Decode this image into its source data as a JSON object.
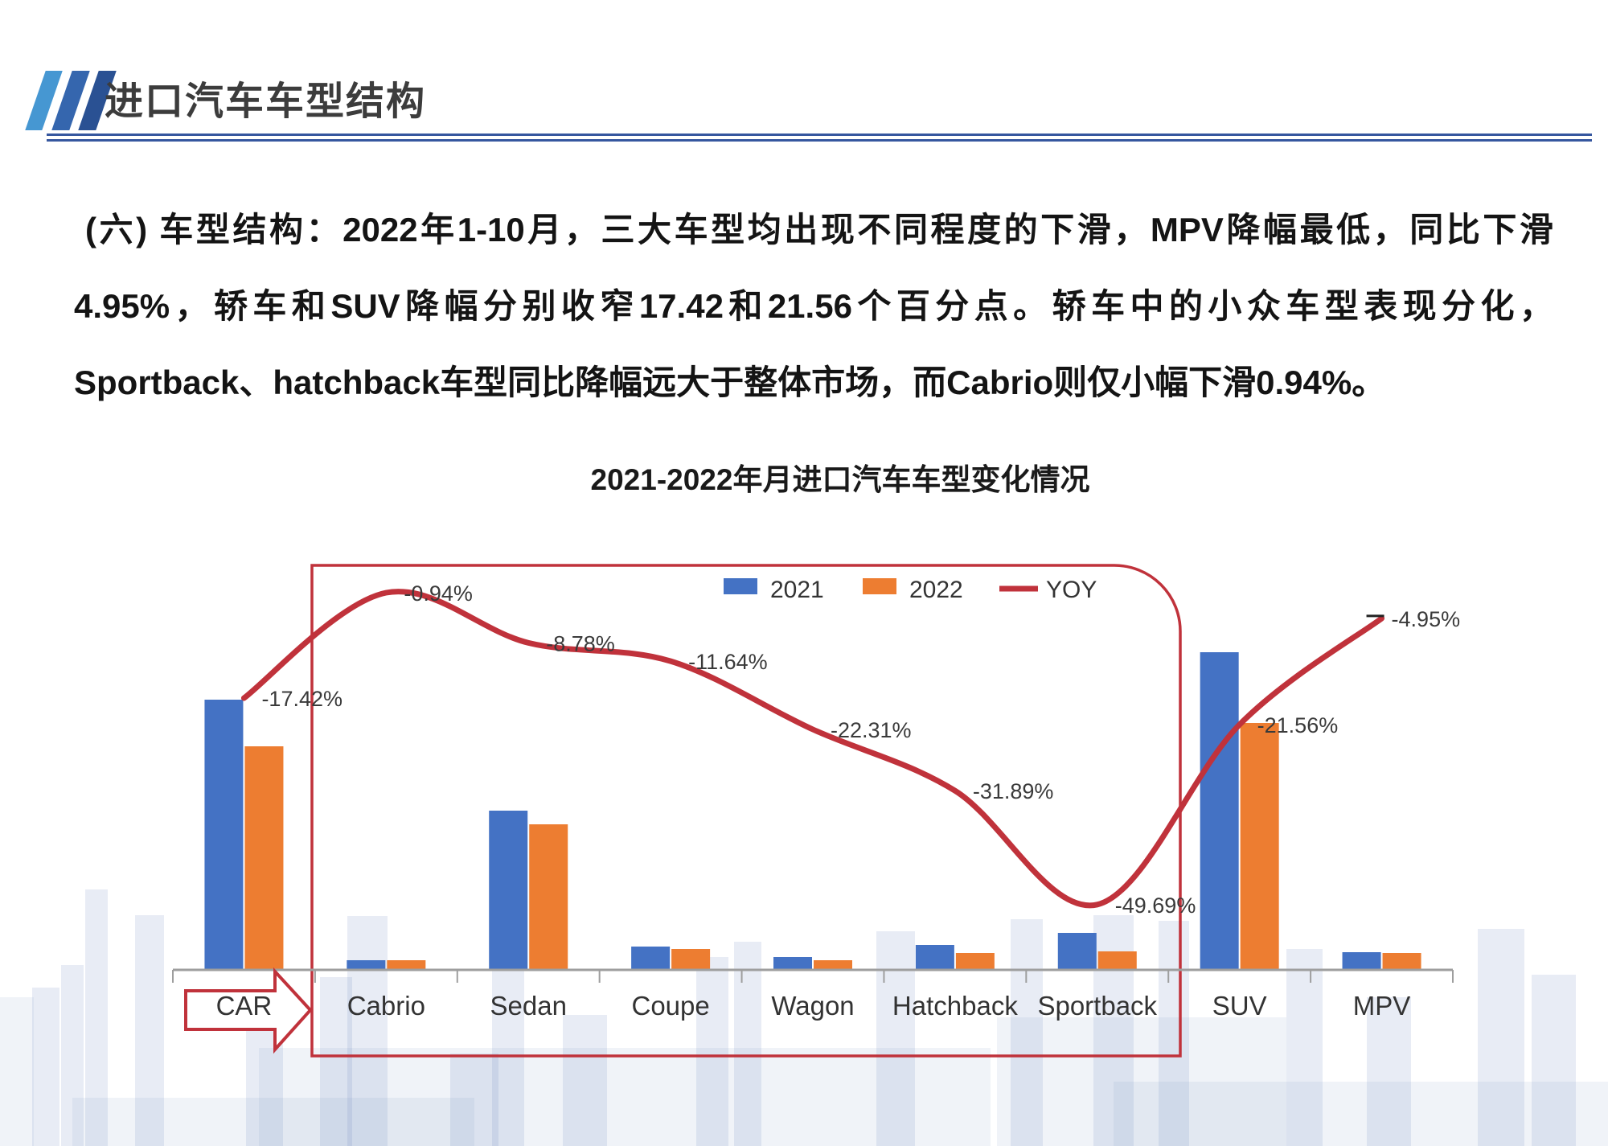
{
  "header": {
    "title": "进口汽车车型结构"
  },
  "body": {
    "paragraph": "(六) 车型结构：2022年1-10月，三大车型均出现不同程度的下滑，MPV降幅最低，同比下滑4.95%，轿车和SUV降幅分别收窄17.42和21.56个百分点。轿车中的小众车型表现分化，Sportback、hatchback车型同比降幅远大于整体市场，而Cabrio则仅小幅下滑0.94%。"
  },
  "chart": {
    "title": "2021-2022年月进口汽车车型变化情况"
  },
  "chart_data": {
    "type": "bar+line combo",
    "title": "2021-2022年月进口汽车车型变化情况",
    "categories": [
      "CAR",
      "Cabrio",
      "Sedan",
      "Coupe",
      "Wagon",
      "Hatchback",
      "Sportback",
      "SUV",
      "MPV"
    ],
    "series": [
      {
        "name": "2021",
        "type": "bar",
        "color": "#4472C4",
        "values": [
          336,
          12,
          198,
          29,
          16,
          31,
          46,
          395,
          22
        ],
        "note": "relative heights; no value axis shown in chart"
      },
      {
        "name": "2022",
        "type": "bar",
        "color": "#ED7D31",
        "values": [
          278,
          12,
          181,
          26,
          12,
          21,
          23,
          307,
          21
        ],
        "note": "relative heights; no value axis shown in chart"
      },
      {
        "name": "YOY",
        "type": "line",
        "color": "#C0323B",
        "values": [
          -17.42,
          -0.94,
          -8.78,
          -11.64,
          -22.31,
          -31.89,
          -49.69,
          -21.56,
          -4.95
        ]
      }
    ],
    "yoy_labels": [
      "-17.42%",
      "-0.94%",
      "-8.78%",
      "-11.64%",
      "-22.31%",
      "-31.89%",
      "-49.69%",
      "-21.56%",
      "-4.95%"
    ],
    "legend": {
      "position": "top-center",
      "entries": [
        "2021",
        "2022",
        "YOY"
      ]
    },
    "axes": {
      "x_ticks": true,
      "y_axis_visible": false,
      "grid": false
    },
    "annotations": {
      "highlight_box_from": "Cabrio",
      "highlight_box_to": "Sportback",
      "highlight_color": "#C0323B",
      "arrow_on_category": "CAR",
      "arrow_color": "#C0323B"
    }
  }
}
